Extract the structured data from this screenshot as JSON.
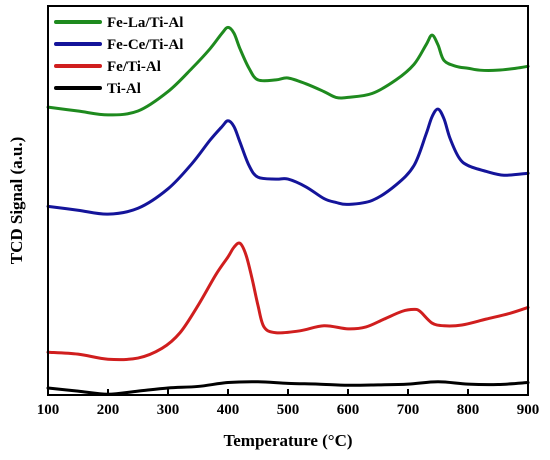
{
  "chart_data": {
    "type": "line",
    "title": "",
    "xlabel": "Temperature (°C)",
    "ylabel": "TCD Signal (a.u.)",
    "xlim": [
      100,
      900
    ],
    "ylim": [
      0,
      10
    ],
    "x_ticks": [
      100,
      200,
      300,
      400,
      500,
      600,
      700,
      800,
      900
    ],
    "y_ticks_shown": false,
    "grid": false,
    "legend_position": "top-left",
    "series": [
      {
        "name": "Fe-La/Ti-Al",
        "color": "#1e8a1e",
        "x": [
          100,
          150,
          200,
          250,
          300,
          340,
          370,
          390,
          400,
          410,
          420,
          435,
          450,
          480,
          500,
          530,
          560,
          580,
          600,
          640,
          680,
          710,
          730,
          740,
          750,
          760,
          780,
          800,
          820,
          850,
          880,
          900
        ],
        "y": [
          7.4,
          7.3,
          7.2,
          7.3,
          7.8,
          8.4,
          8.9,
          9.3,
          9.45,
          9.3,
          8.9,
          8.4,
          8.1,
          8.1,
          8.15,
          8.0,
          7.8,
          7.65,
          7.65,
          7.75,
          8.1,
          8.5,
          9.0,
          9.25,
          9.0,
          8.6,
          8.45,
          8.4,
          8.35,
          8.35,
          8.4,
          8.45
        ]
      },
      {
        "name": "Fe-Ce/Ti-Al",
        "color": "#14149a",
        "x": [
          100,
          150,
          200,
          250,
          300,
          340,
          370,
          390,
          400,
          410,
          420,
          435,
          450,
          480,
          500,
          530,
          560,
          580,
          600,
          640,
          680,
          710,
          730,
          740,
          750,
          760,
          770,
          785,
          800,
          830,
          860,
          900
        ],
        "y": [
          4.85,
          4.75,
          4.65,
          4.8,
          5.3,
          5.95,
          6.55,
          6.9,
          7.05,
          6.9,
          6.5,
          5.9,
          5.6,
          5.55,
          5.55,
          5.35,
          5.05,
          4.95,
          4.9,
          5.0,
          5.4,
          5.9,
          6.7,
          7.15,
          7.35,
          7.1,
          6.6,
          6.1,
          5.9,
          5.75,
          5.65,
          5.7
        ]
      },
      {
        "name": "Fe/Ti-Al",
        "color": "#d01e1e",
        "x": [
          100,
          150,
          200,
          250,
          290,
          320,
          350,
          380,
          400,
          410,
          420,
          430,
          440,
          450,
          460,
          480,
          520,
          560,
          600,
          630,
          660,
          690,
          710,
          720,
          740,
          760,
          790,
          830,
          870,
          900
        ],
        "y": [
          1.1,
          1.05,
          0.92,
          0.95,
          1.2,
          1.6,
          2.3,
          3.1,
          3.55,
          3.8,
          3.9,
          3.6,
          3.0,
          2.3,
          1.75,
          1.6,
          1.65,
          1.78,
          1.7,
          1.75,
          1.95,
          2.15,
          2.2,
          2.15,
          1.85,
          1.78,
          1.8,
          1.95,
          2.1,
          2.25
        ]
      },
      {
        "name": "Ti-Al",
        "color": "#000000",
        "x": [
          100,
          150,
          200,
          250,
          300,
          350,
          400,
          450,
          500,
          550,
          600,
          650,
          700,
          750,
          800,
          850,
          900
        ],
        "y": [
          0.18,
          0.1,
          0.02,
          0.1,
          0.18,
          0.22,
          0.32,
          0.34,
          0.3,
          0.28,
          0.25,
          0.26,
          0.28,
          0.34,
          0.28,
          0.27,
          0.32
        ]
      }
    ]
  }
}
